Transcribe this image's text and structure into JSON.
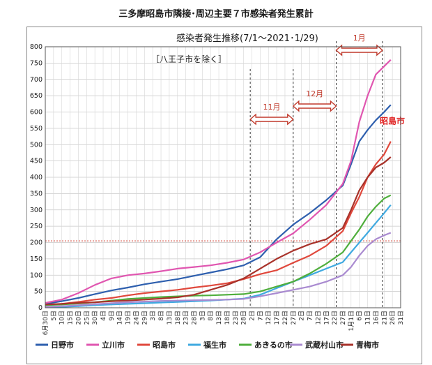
{
  "page": {
    "title": "三多摩昭島市隣接･周辺主要７市感染者発生累計"
  },
  "chart_data": {
    "type": "line",
    "title": "感染者発生推移(7/1～2021･1/29)",
    "subtitle": "［八王子市を除く］",
    "xlabel": "",
    "ylabel": "",
    "ylim": [
      0,
      800
    ],
    "yticks": [
      0,
      50,
      100,
      150,
      200,
      250,
      300,
      350,
      400,
      450,
      500,
      550,
      600,
      650,
      700,
      750,
      800
    ],
    "grid": true,
    "legend_position": "bottom",
    "x_tick_labels": [
      "6月30日",
      "5日",
      "10日",
      "15日",
      "20日",
      "25日",
      "30日",
      "4日",
      "9日",
      "14日",
      "19日",
      "24日",
      "29日",
      "3日",
      "8日",
      "13日",
      "18日",
      "23日",
      "28日",
      "3日",
      "8日",
      "13日",
      "18日",
      "23日",
      "28日",
      "2日",
      "7日",
      "12日",
      "17日",
      "22日",
      "27日",
      "2日",
      "7日",
      "12日",
      "17日",
      "22日",
      "27日",
      "1月1日",
      "6日",
      "11日",
      "16日",
      "21日",
      "26日",
      "31日"
    ],
    "x_range_days": [
      0,
      215
    ],
    "month_markers": [
      {
        "label": "11月",
        "start_day": 124,
        "end_day": 150
      },
      {
        "label": "12月",
        "start_day": 150,
        "end_day": 176
      },
      {
        "label": "1月",
        "start_day": 176,
        "end_day": 204
      }
    ],
    "reference_line": {
      "y": 205,
      "color": "#d0392b",
      "style": "dotted"
    },
    "highlight_label": {
      "text": "昭島市",
      "series": "昭島市",
      "color": "#e02020"
    },
    "series": [
      {
        "name": "日野市",
        "color": "#2e5fae",
        "x": [
          0,
          10,
          20,
          30,
          40,
          50,
          60,
          70,
          80,
          90,
          100,
          110,
          120,
          130,
          140,
          150,
          160,
          170,
          180,
          185,
          190,
          195,
          200,
          205,
          209
        ],
        "values": [
          12,
          20,
          30,
          42,
          53,
          62,
          72,
          80,
          88,
          98,
          108,
          118,
          130,
          155,
          210,
          255,
          290,
          330,
          375,
          440,
          510,
          545,
          575,
          600,
          622
        ]
      },
      {
        "name": "立川市",
        "color": "#e056b0",
        "x": [
          0,
          10,
          20,
          30,
          40,
          50,
          60,
          70,
          80,
          90,
          100,
          110,
          120,
          130,
          140,
          150,
          160,
          170,
          180,
          185,
          190,
          195,
          200,
          205,
          209
        ],
        "values": [
          15,
          25,
          45,
          70,
          90,
          100,
          105,
          112,
          120,
          125,
          130,
          138,
          148,
          170,
          200,
          228,
          270,
          315,
          380,
          450,
          570,
          650,
          715,
          740,
          760
        ]
      },
      {
        "name": "昭島市",
        "color": "#e0483c",
        "x": [
          0,
          10,
          20,
          30,
          40,
          50,
          60,
          70,
          80,
          90,
          100,
          110,
          120,
          130,
          140,
          150,
          160,
          170,
          180,
          185,
          190,
          195,
          200,
          205,
          209
        ],
        "values": [
          8,
          12,
          18,
          25,
          30,
          38,
          45,
          50,
          55,
          62,
          68,
          75,
          88,
          103,
          115,
          138,
          160,
          190,
          235,
          290,
          340,
          400,
          440,
          470,
          510
        ]
      },
      {
        "name": "福生市",
        "color": "#3fa9e0",
        "x": [
          0,
          10,
          20,
          30,
          40,
          50,
          60,
          70,
          80,
          90,
          100,
          110,
          120,
          130,
          140,
          150,
          160,
          170,
          180,
          185,
          190,
          195,
          200,
          205,
          209
        ],
        "values": [
          2,
          3,
          5,
          8,
          10,
          12,
          14,
          16,
          18,
          20,
          22,
          25,
          28,
          40,
          60,
          80,
          100,
          120,
          140,
          170,
          200,
          230,
          260,
          290,
          315
        ]
      },
      {
        "name": "あきるの市",
        "color": "#4fae3c",
        "x": [
          0,
          10,
          20,
          30,
          40,
          50,
          60,
          70,
          80,
          90,
          100,
          110,
          120,
          130,
          140,
          150,
          160,
          170,
          180,
          185,
          190,
          195,
          200,
          205,
          209
        ],
        "values": [
          8,
          10,
          13,
          17,
          22,
          27,
          30,
          33,
          35,
          37,
          38,
          40,
          42,
          50,
          65,
          80,
          105,
          135,
          170,
          205,
          240,
          280,
          310,
          335,
          345
        ]
      },
      {
        "name": "武蔵村山市",
        "color": "#a98ad0",
        "x": [
          0,
          10,
          20,
          30,
          40,
          50,
          60,
          70,
          80,
          90,
          100,
          110,
          120,
          130,
          140,
          150,
          160,
          170,
          180,
          185,
          190,
          195,
          200,
          205,
          209
        ],
        "values": [
          3,
          5,
          8,
          11,
          14,
          17,
          19,
          21,
          22,
          23,
          24,
          25,
          27,
          35,
          45,
          55,
          65,
          80,
          100,
          125,
          160,
          190,
          210,
          222,
          230
        ]
      },
      {
        "name": "青梅市",
        "color": "#a8322a",
        "x": [
          0,
          10,
          20,
          30,
          40,
          50,
          60,
          70,
          80,
          90,
          100,
          110,
          120,
          130,
          140,
          150,
          160,
          170,
          180,
          185,
          190,
          195,
          200,
          205,
          209
        ],
        "values": [
          10,
          12,
          15,
          17,
          20,
          22,
          25,
          28,
          32,
          40,
          55,
          70,
          90,
          120,
          150,
          175,
          195,
          210,
          245,
          300,
          360,
          400,
          430,
          445,
          462
        ]
      }
    ]
  }
}
